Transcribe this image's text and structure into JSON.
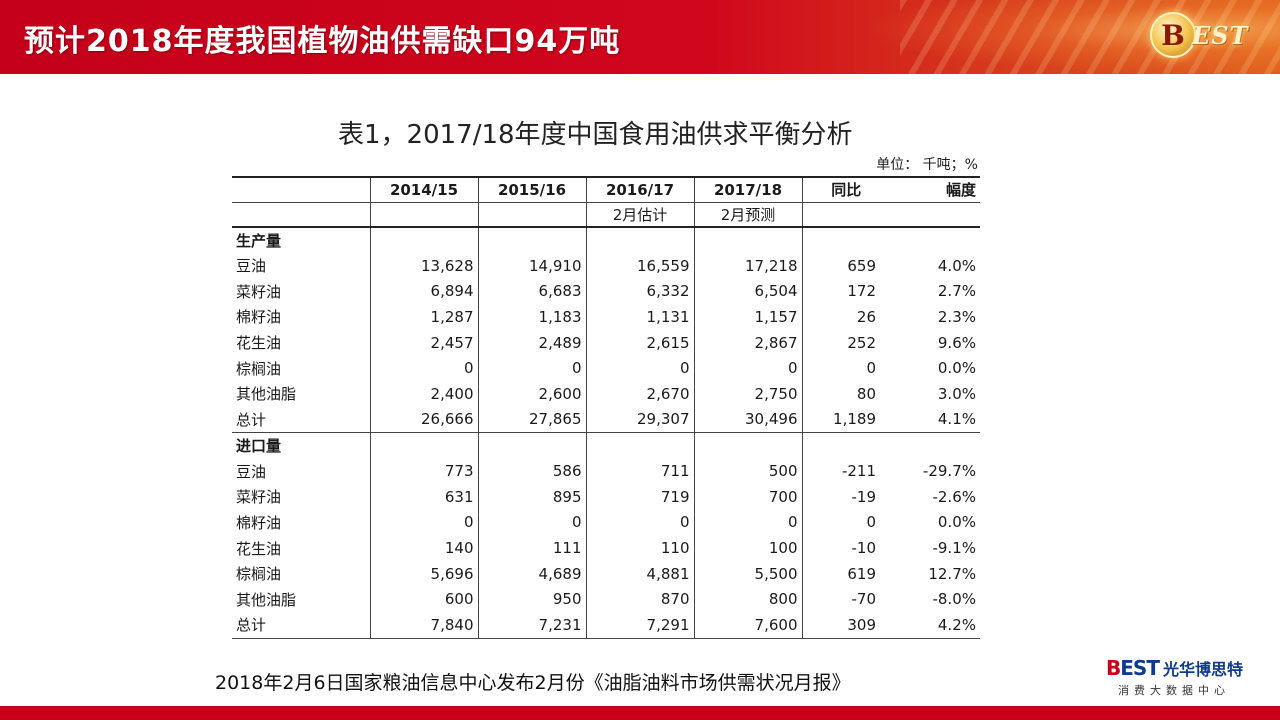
{
  "header": {
    "title": "预计2018年度我国植物油供需缺口94万吨",
    "logo_letter": "B",
    "logo_text": "EST"
  },
  "table": {
    "caption": "表1，2017/18年度中国食用油供求平衡分析",
    "unit": "单位： 千吨；%",
    "columns": [
      "",
      "2014/15",
      "2015/16",
      "2016/17",
      "2017/18",
      "同比",
      "幅度"
    ],
    "subheaders": [
      "",
      "",
      "",
      "2月估计",
      "2月预测",
      "",
      ""
    ],
    "sections": [
      {
        "title": "生产量",
        "rows": [
          [
            "豆油",
            "13,628",
            "14,910",
            "16,559",
            "17,218",
            "659",
            "4.0%"
          ],
          [
            "菜籽油",
            "6,894",
            "6,683",
            "6,332",
            "6,504",
            "172",
            "2.7%"
          ],
          [
            "棉籽油",
            "1,287",
            "1,183",
            "1,131",
            "1,157",
            "26",
            "2.3%"
          ],
          [
            "花生油",
            "2,457",
            "2,489",
            "2,615",
            "2,867",
            "252",
            "9.6%"
          ],
          [
            "棕榈油",
            "0",
            "0",
            "0",
            "0",
            "0",
            "0.0%"
          ],
          [
            "其他油脂",
            "2,400",
            "2,600",
            "2,670",
            "2,750",
            "80",
            "3.0%"
          ],
          [
            "总计",
            "26,666",
            "27,865",
            "29,307",
            "30,496",
            "1,189",
            "4.1%"
          ]
        ]
      },
      {
        "title": "进口量",
        "rows": [
          [
            "豆油",
            "773",
            "586",
            "711",
            "500",
            "-211",
            "-29.7%"
          ],
          [
            "菜籽油",
            "631",
            "895",
            "719",
            "700",
            "-19",
            "-2.6%"
          ],
          [
            "棉籽油",
            "0",
            "0",
            "0",
            "0",
            "0",
            "0.0%"
          ],
          [
            "花生油",
            "140",
            "111",
            "110",
            "100",
            "-10",
            "-9.1%"
          ],
          [
            "棕榈油",
            "5,696",
            "4,689",
            "4,881",
            "5,500",
            "619",
            "12.7%"
          ],
          [
            "其他油脂",
            "600",
            "950",
            "870",
            "800",
            "-70",
            "-8.0%"
          ],
          [
            "总计",
            "7,840",
            "7,231",
            "7,291",
            "7,600",
            "309",
            "4.2%"
          ]
        ]
      }
    ]
  },
  "footer": {
    "source": "2018年2月6日国家粮油信息中心发布2月份《油脂油料市场供需状况月报》",
    "logo_mark_b": "B",
    "logo_mark_rest": "EST",
    "logo_cn": "光华博思特",
    "logo_tagline": "消费大数据中心"
  },
  "colors": {
    "header_red": "#c4001a",
    "accent_gold": "#f2c14a",
    "logo_blue": "#0e3c8c",
    "bottom_bar": "#c8001a"
  }
}
